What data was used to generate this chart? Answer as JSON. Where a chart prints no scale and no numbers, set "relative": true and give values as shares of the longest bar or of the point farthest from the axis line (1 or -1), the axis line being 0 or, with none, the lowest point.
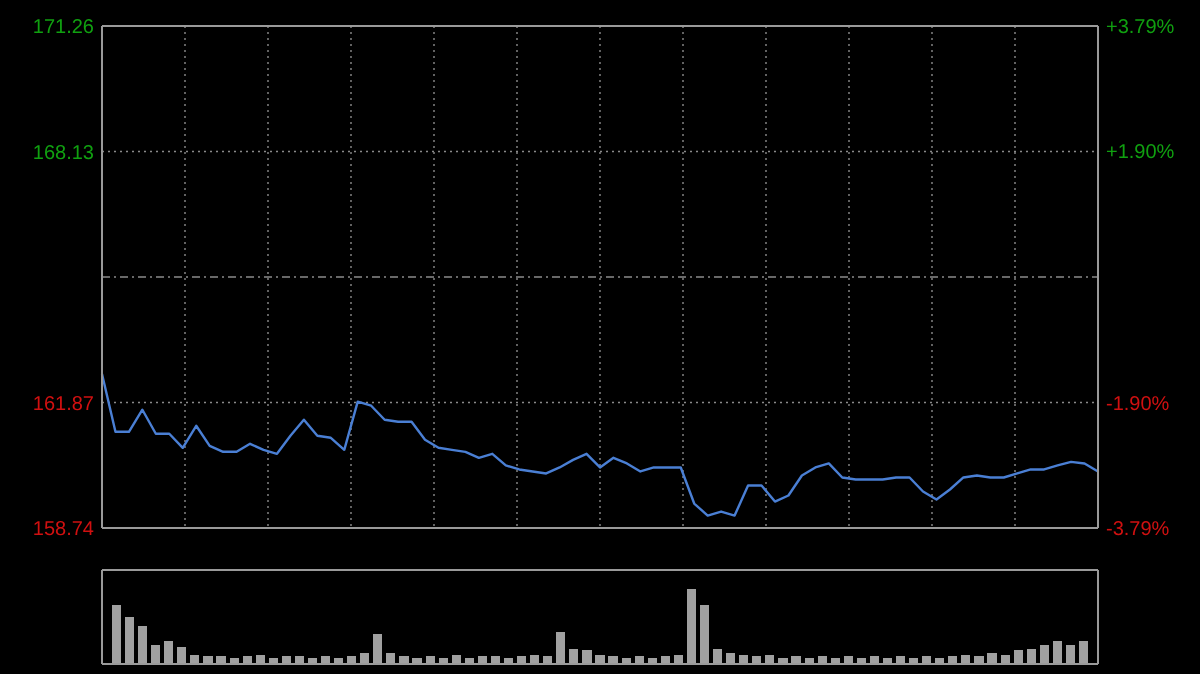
{
  "chart_data": [
    {
      "type": "line",
      "categories": [
        null,
        null,
        null,
        null,
        null,
        null,
        null,
        null,
        null,
        null,
        null,
        null,
        null,
        null,
        null,
        null,
        null,
        null,
        null,
        null,
        null,
        null,
        null,
        null,
        null,
        null,
        null,
        null,
        null,
        null,
        null,
        null,
        null,
        null,
        null,
        null,
        null,
        null,
        null,
        null,
        null,
        null,
        null,
        null,
        null,
        null,
        null,
        null,
        null,
        null,
        null,
        null,
        null,
        null,
        null,
        null,
        null,
        null,
        null,
        null,
        null,
        null,
        null,
        null,
        null,
        null,
        null,
        null,
        null,
        null,
        null,
        null,
        null,
        null,
        null
      ],
      "series": [
        {
          "color": "#4a7fd4",
          "values": [
            162.58,
            161.14,
            161.14,
            161.69,
            161.09,
            161.09,
            160.74,
            161.29,
            160.79,
            160.64,
            160.64,
            160.84,
            160.69,
            160.59,
            161.04,
            161.44,
            161.04,
            160.99,
            160.69,
            161.89,
            161.79,
            161.44,
            161.39,
            161.39,
            160.94,
            160.74,
            160.69,
            160.64,
            160.49,
            160.59,
            160.3,
            160.2,
            160.15,
            160.1,
            160.25,
            160.44,
            160.59,
            160.25,
            160.49,
            160.35,
            160.15,
            160.25,
            160.25,
            160.25,
            159.35,
            159.05,
            159.15,
            159.05,
            159.8,
            159.8,
            159.4,
            159.55,
            160.05,
            160.25,
            160.35,
            160.0,
            159.95,
            159.95,
            159.95,
            160.0,
            160.0,
            159.65,
            159.45,
            159.7,
            160.0,
            160.05,
            160.0,
            160.0,
            160.1,
            160.2,
            160.2,
            160.3,
            160.39,
            160.35,
            160.15
          ]
        }
      ],
      "ylim": [
        158.74,
        171.26
      ],
      "yticks": [
        158.74,
        161.87,
        {
          "value": 165,
          "label": null
        },
        168.13,
        171.26
      ],
      "y2lim": [
        -3.79,
        3.79
      ],
      "y2ticks": [
        {
          "value": -3.79,
          "label": "-3.79%"
        },
        {
          "value": -1.9,
          "label": "-1.90%"
        },
        {
          "value": 1.9,
          "label": "+1.90%"
        },
        {
          "value": 3.79,
          "label": "+3.79%"
        }
      ],
      "grid": true
    },
    {
      "type": "bar",
      "relative": true,
      "categories": [
        null,
        null,
        null,
        null,
        null,
        null,
        null,
        null,
        null,
        null,
        null,
        null,
        null,
        null,
        null,
        null,
        null,
        null,
        null,
        null,
        null,
        null,
        null,
        null,
        null,
        null,
        null,
        null,
        null,
        null,
        null,
        null,
        null,
        null,
        null,
        null,
        null,
        null,
        null,
        null,
        null,
        null,
        null,
        null,
        null,
        null,
        null,
        null,
        null,
        null,
        null,
        null,
        null,
        null,
        null,
        null,
        null,
        null,
        null,
        null,
        null,
        null,
        null,
        null,
        null,
        null,
        null,
        null,
        null,
        null,
        null,
        null,
        null,
        null,
        null
      ],
      "values": [
        0.78,
        0.62,
        0.5,
        0.25,
        0.3,
        0.22,
        0.12,
        0.1,
        0.1,
        0.08,
        0.1,
        0.12,
        0.08,
        0.1,
        0.1,
        0.08,
        0.1,
        0.08,
        0.1,
        0.15,
        0.4,
        0.15,
        0.1,
        0.08,
        0.1,
        0.08,
        0.12,
        0.08,
        0.1,
        0.1,
        0.08,
        0.1,
        0.12,
        0.1,
        0.42,
        0.2,
        0.18,
        0.12,
        0.1,
        0.08,
        0.1,
        0.08,
        0.1,
        0.12,
        1,
        0.78,
        0.2,
        0.15,
        0.12,
        0.1,
        0.12,
        0.08,
        0.1,
        0.08,
        0.1,
        0.08,
        0.1,
        0.08,
        0.1,
        0.08,
        0.1,
        0.08,
        0.1,
        0.08,
        0.1,
        0.12,
        0.1,
        0.15,
        0.12,
        0.18,
        0.2,
        0.25,
        0.3,
        0.25,
        0.3
      ],
      "color": "#a0a0a0"
    }
  ]
}
